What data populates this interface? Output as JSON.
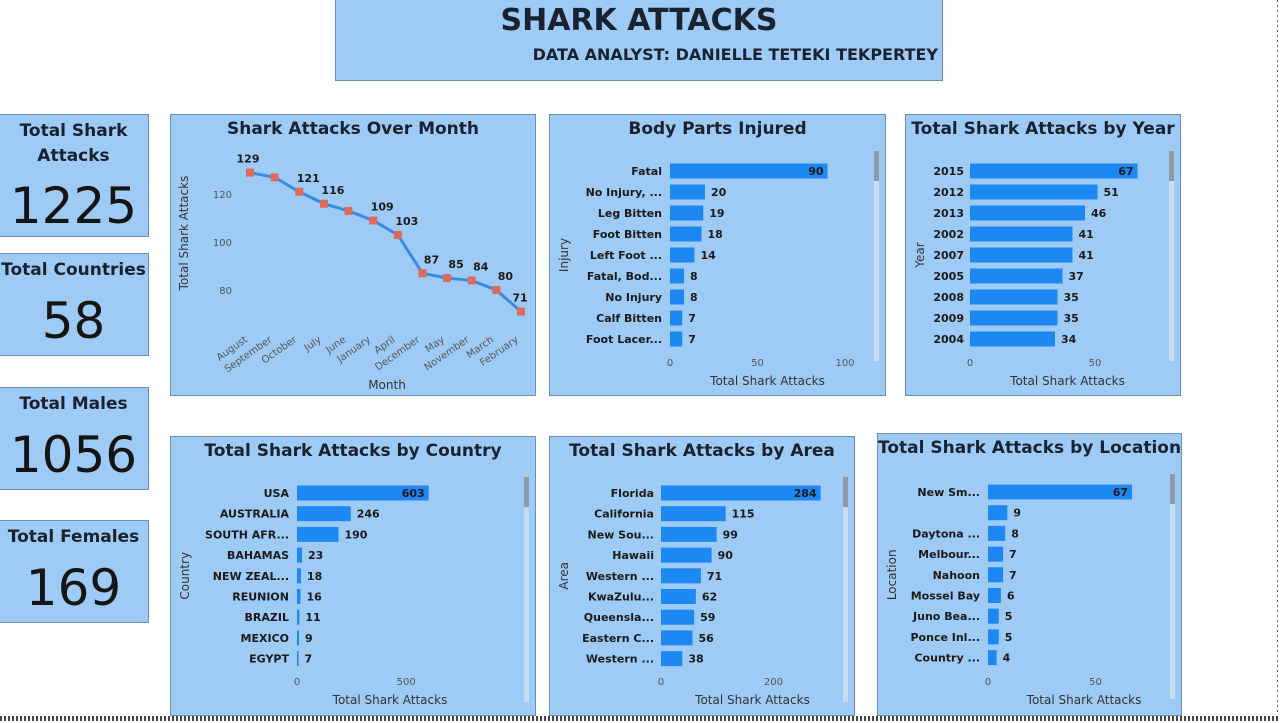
{
  "header": {
    "title": "SHARK ATTACKS",
    "subtitle": "DATA ANALYST: DANIELLE TETEKI TEKPERTEY"
  },
  "kpis": [
    {
      "label": "Total Shark Attacks",
      "value": "1225"
    },
    {
      "label": "Total Countries",
      "value": "58"
    },
    {
      "label": "Total Males",
      "value": "1056"
    },
    {
      "label": "Total Females",
      "value": "169"
    }
  ],
  "colors": {
    "panel": "#9ecbf5",
    "bar": "#1e88f2",
    "line": "#3a8be0",
    "marker": "#e06a5a"
  },
  "chart_data": [
    {
      "id": "month",
      "type": "line",
      "title": "Shark Attacks Over Month",
      "xlabel": "Month",
      "ylabel": "Total Shark Attacks",
      "categories": [
        "August",
        "September",
        "October",
        "July",
        "June",
        "January",
        "April",
        "December",
        "May",
        "November",
        "March",
        "February"
      ],
      "values": [
        129,
        127,
        121,
        116,
        113,
        109,
        103,
        87,
        85,
        84,
        80,
        71
      ],
      "data_labels": [
        "129",
        "",
        "121",
        "116",
        "",
        "109",
        "103",
        "87",
        "85",
        "84",
        "80",
        "71"
      ],
      "y_ticks": [
        80,
        100,
        120
      ],
      "ylim": [
        65,
        133
      ]
    },
    {
      "id": "body",
      "type": "bar",
      "orientation": "horizontal",
      "title": "Body Parts Injured",
      "xlabel": "Total Shark Attacks",
      "ylabel": "Injury",
      "categories": [
        "Fatal",
        "No Injury, ...",
        "Leg Bitten",
        "Foot Bitten",
        "Left Foot ...",
        "Fatal, Bod...",
        "No Injury",
        "Calf Bitten",
        "Foot Lacer..."
      ],
      "values": [
        90,
        20,
        19,
        18,
        14,
        8,
        8,
        7,
        7
      ],
      "x_ticks": [
        0,
        50,
        100
      ],
      "xlim": [
        0,
        100
      ]
    },
    {
      "id": "year",
      "type": "bar",
      "orientation": "horizontal",
      "title": "Total Shark Attacks by Year",
      "xlabel": "Total Shark Attacks",
      "ylabel": "Year",
      "categories": [
        "2015",
        "2012",
        "2013",
        "2002",
        "2007",
        "2005",
        "2008",
        "2009",
        "2004"
      ],
      "values": [
        67,
        51,
        46,
        41,
        41,
        37,
        35,
        35,
        34
      ],
      "x_ticks": [
        0,
        50
      ],
      "xlim": [
        0,
        70
      ]
    },
    {
      "id": "country",
      "type": "bar",
      "orientation": "horizontal",
      "title": "Total Shark Attacks by Country",
      "xlabel": "Total Shark Attacks",
      "ylabel": "Country",
      "categories": [
        "USA",
        "AUSTRALIA",
        "SOUTH AFR...",
        "BAHAMAS",
        "NEW ZEAL...",
        "REUNION",
        "BRAZIL",
        "MEXICO",
        "EGYPT"
      ],
      "values": [
        603,
        246,
        190,
        23,
        18,
        16,
        11,
        9,
        7
      ],
      "x_ticks": [
        0,
        500
      ],
      "xlim": [
        0,
        760
      ]
    },
    {
      "id": "area",
      "type": "bar",
      "orientation": "horizontal",
      "title": "Total Shark Attacks by Area",
      "xlabel": "Total Shark Attacks",
      "ylabel": "Area",
      "categories": [
        "Florida",
        "California",
        "New Sou...",
        "Hawaii",
        "Western ...",
        "KwaZulu...",
        "Queensla...",
        "Eastern C...",
        "Western ..."
      ],
      "values": [
        284,
        115,
        99,
        90,
        71,
        62,
        59,
        56,
        38
      ],
      "x_ticks": [
        0,
        200
      ],
      "xlim": [
        0,
        290
      ]
    },
    {
      "id": "location",
      "type": "bar",
      "orientation": "horizontal",
      "title": "Total Shark Attacks by Location",
      "xlabel": "Total Shark Attacks",
      "ylabel": "Location",
      "categories": [
        "New Sm...",
        "",
        "Daytona ...",
        "Melbour...",
        "Nahoon",
        "Mossel Bay",
        "Juno Bea...",
        "Ponce Inl...",
        "Country ..."
      ],
      "values": [
        67,
        9,
        8,
        7,
        7,
        6,
        5,
        5,
        4
      ],
      "x_ticks": [
        0,
        50
      ],
      "xlim": [
        0,
        80
      ]
    }
  ]
}
